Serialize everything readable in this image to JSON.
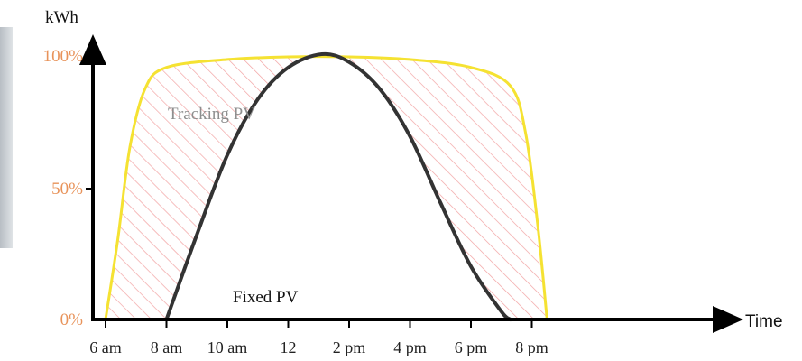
{
  "chart_data": {
    "type": "area",
    "ylabel": "kWh",
    "xlabel": "Time",
    "x_ticks": [
      "6 am",
      "8 am",
      "10 am",
      "12",
      "2 pm",
      "4 pm",
      "6 pm",
      "8 pm"
    ],
    "x_hours": [
      6,
      8,
      10,
      12,
      14,
      16,
      18,
      20
    ],
    "y_ticks": [
      "0%",
      "50%",
      "100%"
    ],
    "y_tick_values": [
      0,
      50,
      100
    ],
    "xlim": [
      5.3,
      21
    ],
    "ylim": [
      0,
      100
    ],
    "series": [
      {
        "name": "Tracking PV",
        "color": "#f5e232",
        "points": [
          [
            6.0,
            0
          ],
          [
            6.4,
            30
          ],
          [
            6.8,
            65
          ],
          [
            7.3,
            87
          ],
          [
            8.0,
            95
          ],
          [
            10.0,
            98
          ],
          [
            12.0,
            99
          ],
          [
            14.0,
            99
          ],
          [
            16.0,
            98
          ],
          [
            18.0,
            95
          ],
          [
            19.3,
            88
          ],
          [
            19.8,
            70
          ],
          [
            20.2,
            35
          ],
          [
            20.5,
            0
          ]
        ]
      },
      {
        "name": "Fixed PV",
        "color": "#333333",
        "points": [
          [
            8.0,
            0
          ],
          [
            9.0,
            32
          ],
          [
            10.0,
            62
          ],
          [
            11.0,
            83
          ],
          [
            12.0,
            95
          ],
          [
            13.1,
            100
          ],
          [
            14.0,
            97
          ],
          [
            15.0,
            87
          ],
          [
            16.0,
            69
          ],
          [
            17.0,
            44
          ],
          [
            18.0,
            20
          ],
          [
            19.0,
            3
          ],
          [
            19.3,
            0
          ]
        ]
      }
    ],
    "fill": {
      "description_visible": false,
      "color": "#f2a3a3",
      "pattern": "diagonal-hatch"
    }
  }
}
